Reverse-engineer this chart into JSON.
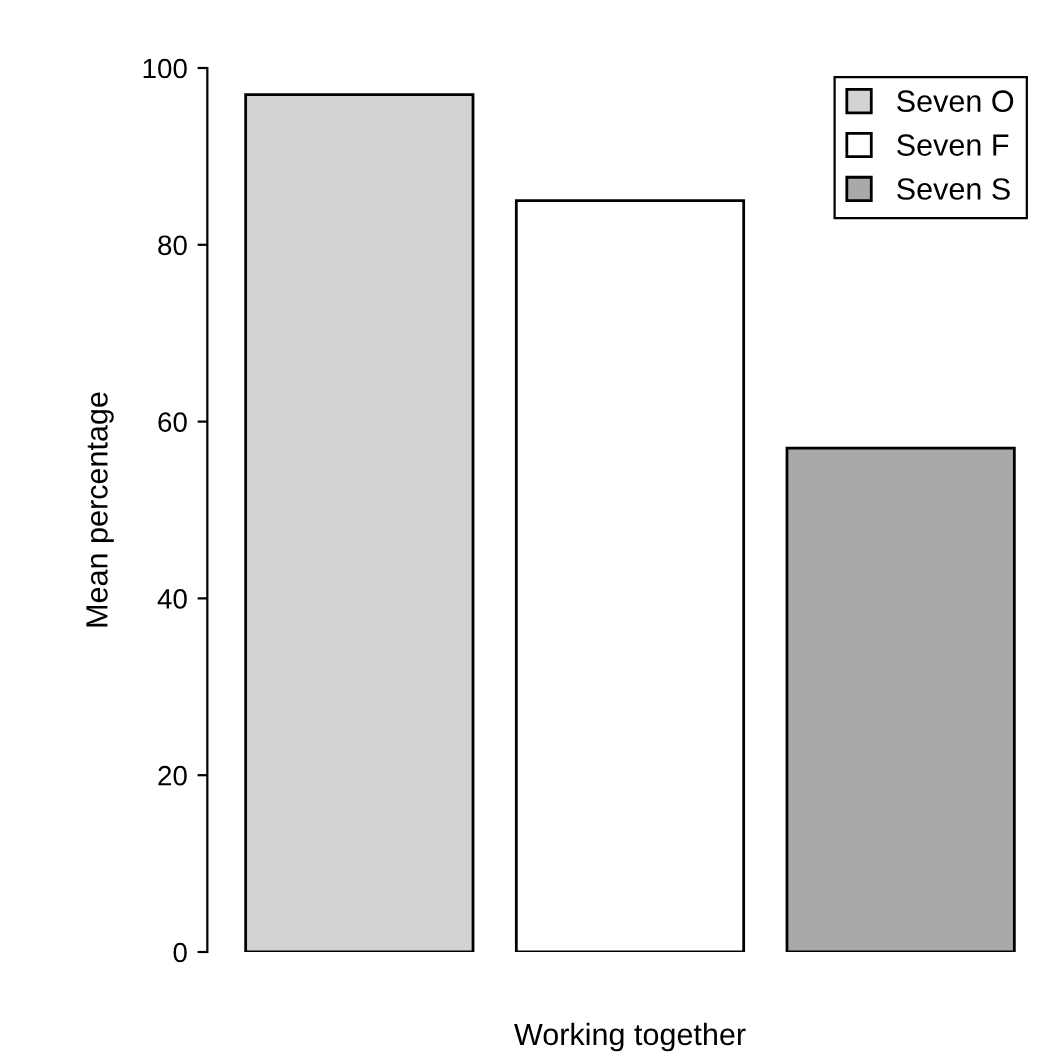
{
  "chart_data": {
    "type": "bar",
    "xlabel": "Working together",
    "ylabel": "Mean percentage",
    "categories": [
      null
    ],
    "series": [
      {
        "name": "Seven O",
        "color": "#d3d3d3",
        "values": [
          97
        ]
      },
      {
        "name": "Seven F",
        "color": "#ffffff",
        "values": [
          85
        ]
      },
      {
        "name": "Seven S",
        "color": "#a9a9a9",
        "values": [
          57
        ]
      }
    ],
    "ylim": [
      0,
      100
    ],
    "yticks": [
      0,
      20,
      40,
      60,
      80,
      100
    ],
    "grid": false,
    "legend": "top right"
  }
}
